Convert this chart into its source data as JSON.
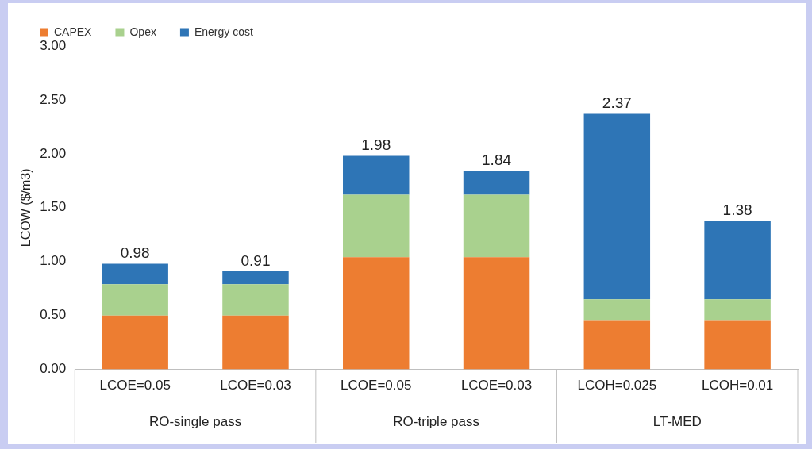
{
  "chart_data": {
    "type": "bar",
    "ylabel": "LCOW ($/m3)",
    "stacked": true,
    "legend": "top left",
    "grid": false,
    "categories": [
      "LCOE=0.05",
      "LCOE=0.03",
      "LCOE=0.05",
      "LCOE=0.03",
      "LCOH=0.025",
      "LCOH=0.01"
    ],
    "series": [
      {
        "name": "CAPEX",
        "color": "#ed7d31",
        "values": [
          0.5,
          0.5,
          1.04,
          1.04,
          0.45,
          0.45
        ]
      },
      {
        "name": "Opex",
        "color": "#a9d18e",
        "values": [
          0.29,
          0.29,
          0.58,
          0.58,
          0.2,
          0.2
        ]
      },
      {
        "name": "Energy cost",
        "color": "#2e75b6",
        "values": [
          0.19,
          0.12,
          0.36,
          0.22,
          1.72,
          0.73
        ]
      }
    ],
    "totals": [
      "0.98",
      "0.91",
      "1.98",
      "1.84",
      "2.37",
      "1.38"
    ],
    "annotations": [
      "RO-single pass",
      "RO-triple pass",
      "LT-MED"
    ],
    "ylim": [
      0,
      3
    ],
    "yticks": [
      {
        "value": 0,
        "label": "0.00"
      },
      {
        "value": 0.5,
        "label": "0.50"
      },
      {
        "value": 1,
        "label": "1.00"
      },
      {
        "value": 1.5,
        "label": "1.50"
      },
      {
        "value": 2,
        "label": "2.00"
      },
      {
        "value": 2.5,
        "label": "2.50"
      },
      {
        "value": 3,
        "label": "3.00"
      }
    ]
  }
}
